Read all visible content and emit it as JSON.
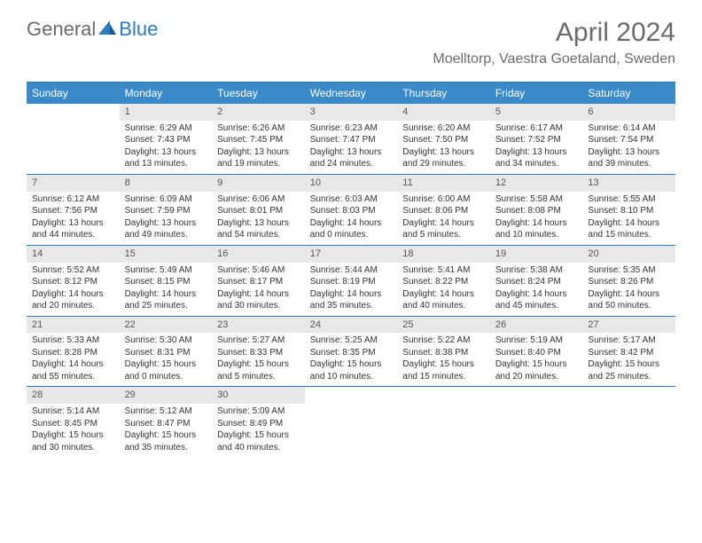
{
  "logo": {
    "text1": "General",
    "text2": "Blue"
  },
  "title": "April 2024",
  "location": "Moelltorp, Vaestra Goetaland, Sweden",
  "colors": {
    "headerBg": "#3a8ac9",
    "border": "#2b7bbf",
    "dayNumBg": "#e8e8e8",
    "text": "#333333",
    "muted": "#6b6b6b"
  },
  "dayNames": [
    "Sunday",
    "Monday",
    "Tuesday",
    "Wednesday",
    "Thursday",
    "Friday",
    "Saturday"
  ],
  "weeks": [
    [
      null,
      {
        "n": "1",
        "sr": "6:29 AM",
        "ss": "7:43 PM",
        "dl": "13 hours and 13 minutes."
      },
      {
        "n": "2",
        "sr": "6:26 AM",
        "ss": "7:45 PM",
        "dl": "13 hours and 19 minutes."
      },
      {
        "n": "3",
        "sr": "6:23 AM",
        "ss": "7:47 PM",
        "dl": "13 hours and 24 minutes."
      },
      {
        "n": "4",
        "sr": "6:20 AM",
        "ss": "7:50 PM",
        "dl": "13 hours and 29 minutes."
      },
      {
        "n": "5",
        "sr": "6:17 AM",
        "ss": "7:52 PM",
        "dl": "13 hours and 34 minutes."
      },
      {
        "n": "6",
        "sr": "6:14 AM",
        "ss": "7:54 PM",
        "dl": "13 hours and 39 minutes."
      }
    ],
    [
      {
        "n": "7",
        "sr": "6:12 AM",
        "ss": "7:56 PM",
        "dl": "13 hours and 44 minutes."
      },
      {
        "n": "8",
        "sr": "6:09 AM",
        "ss": "7:59 PM",
        "dl": "13 hours and 49 minutes."
      },
      {
        "n": "9",
        "sr": "6:06 AM",
        "ss": "8:01 PM",
        "dl": "13 hours and 54 minutes."
      },
      {
        "n": "10",
        "sr": "6:03 AM",
        "ss": "8:03 PM",
        "dl": "14 hours and 0 minutes."
      },
      {
        "n": "11",
        "sr": "6:00 AM",
        "ss": "8:06 PM",
        "dl": "14 hours and 5 minutes."
      },
      {
        "n": "12",
        "sr": "5:58 AM",
        "ss": "8:08 PM",
        "dl": "14 hours and 10 minutes."
      },
      {
        "n": "13",
        "sr": "5:55 AM",
        "ss": "8:10 PM",
        "dl": "14 hours and 15 minutes."
      }
    ],
    [
      {
        "n": "14",
        "sr": "5:52 AM",
        "ss": "8:12 PM",
        "dl": "14 hours and 20 minutes."
      },
      {
        "n": "15",
        "sr": "5:49 AM",
        "ss": "8:15 PM",
        "dl": "14 hours and 25 minutes."
      },
      {
        "n": "16",
        "sr": "5:46 AM",
        "ss": "8:17 PM",
        "dl": "14 hours and 30 minutes."
      },
      {
        "n": "17",
        "sr": "5:44 AM",
        "ss": "8:19 PM",
        "dl": "14 hours and 35 minutes."
      },
      {
        "n": "18",
        "sr": "5:41 AM",
        "ss": "8:22 PM",
        "dl": "14 hours and 40 minutes."
      },
      {
        "n": "19",
        "sr": "5:38 AM",
        "ss": "8:24 PM",
        "dl": "14 hours and 45 minutes."
      },
      {
        "n": "20",
        "sr": "5:35 AM",
        "ss": "8:26 PM",
        "dl": "14 hours and 50 minutes."
      }
    ],
    [
      {
        "n": "21",
        "sr": "5:33 AM",
        "ss": "8:28 PM",
        "dl": "14 hours and 55 minutes."
      },
      {
        "n": "22",
        "sr": "5:30 AM",
        "ss": "8:31 PM",
        "dl": "15 hours and 0 minutes."
      },
      {
        "n": "23",
        "sr": "5:27 AM",
        "ss": "8:33 PM",
        "dl": "15 hours and 5 minutes."
      },
      {
        "n": "24",
        "sr": "5:25 AM",
        "ss": "8:35 PM",
        "dl": "15 hours and 10 minutes."
      },
      {
        "n": "25",
        "sr": "5:22 AM",
        "ss": "8:38 PM",
        "dl": "15 hours and 15 minutes."
      },
      {
        "n": "26",
        "sr": "5:19 AM",
        "ss": "8:40 PM",
        "dl": "15 hours and 20 minutes."
      },
      {
        "n": "27",
        "sr": "5:17 AM",
        "ss": "8:42 PM",
        "dl": "15 hours and 25 minutes."
      }
    ],
    [
      {
        "n": "28",
        "sr": "5:14 AM",
        "ss": "8:45 PM",
        "dl": "15 hours and 30 minutes."
      },
      {
        "n": "29",
        "sr": "5:12 AM",
        "ss": "8:47 PM",
        "dl": "15 hours and 35 minutes."
      },
      {
        "n": "30",
        "sr": "5:09 AM",
        "ss": "8:49 PM",
        "dl": "15 hours and 40 minutes."
      },
      null,
      null,
      null,
      null
    ]
  ],
  "labels": {
    "sunrise": "Sunrise:",
    "sunset": "Sunset:",
    "daylight": "Daylight:"
  }
}
